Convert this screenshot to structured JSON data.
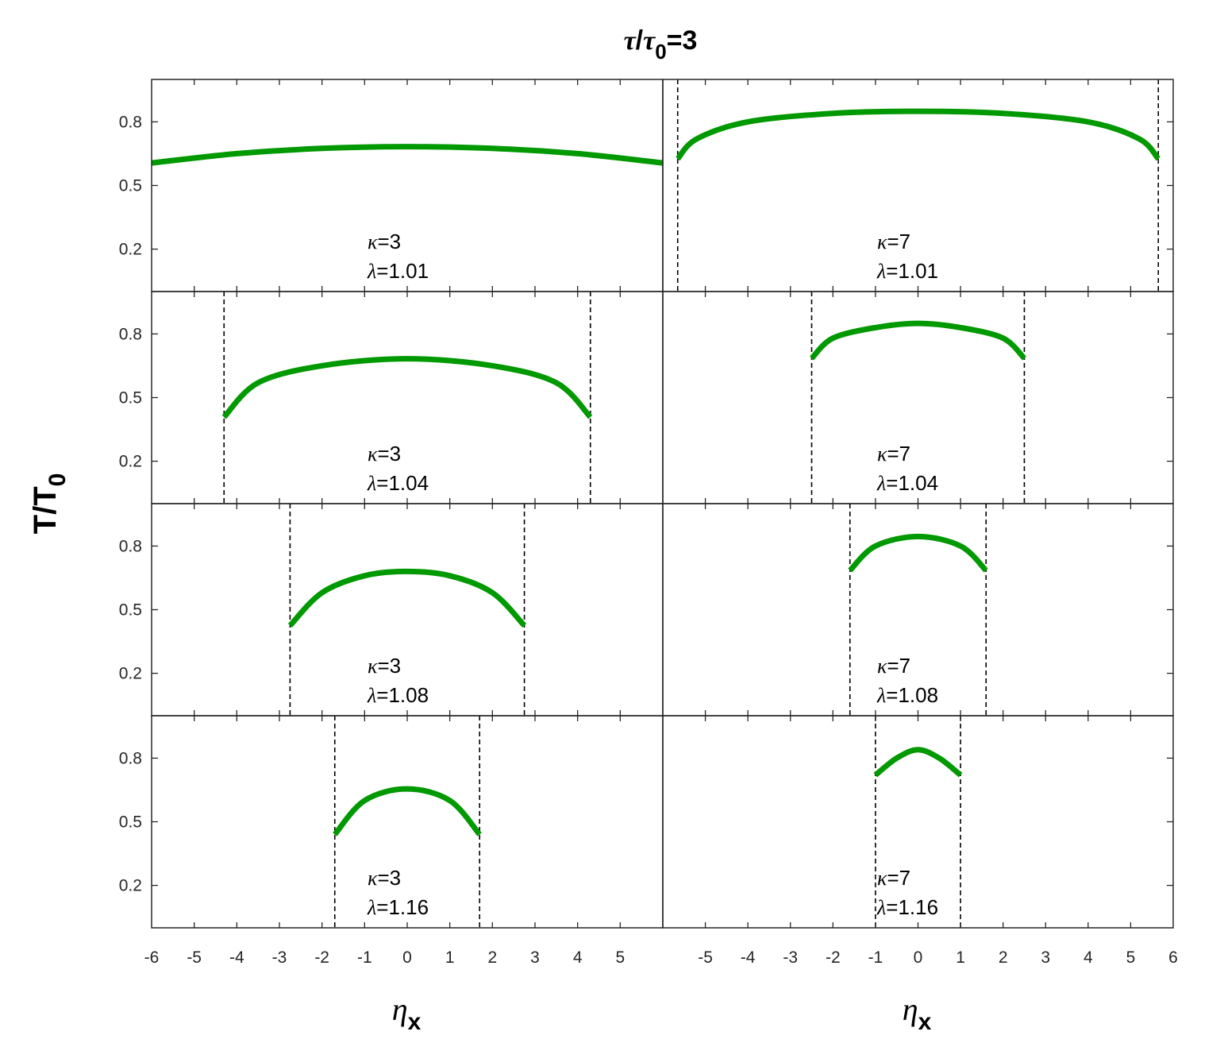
{
  "figure": {
    "title": "τ/τ0=3",
    "title_parts": {
      "tau": "τ",
      "slash": "/",
      "tau0": "τ",
      "sub": "0",
      "rest": "=3"
    },
    "ylabel": {
      "main": "T/T",
      "sub": "0"
    },
    "xlabel": {
      "main": "η",
      "sub": "x"
    }
  },
  "colors": {
    "curve": "#009900",
    "boundary": "#000000",
    "axis": "#262626"
  },
  "chart_data": {
    "type": "line",
    "layout": "grid 4 rows x 2 columns, shared axes",
    "x_range": [
      -6,
      6
    ],
    "y_range": [
      0.0,
      1.0
    ],
    "x_ticks": [
      -6,
      -5,
      -4,
      -3,
      -2,
      -1,
      0,
      1,
      2,
      3,
      4,
      5,
      6
    ],
    "y_ticks": [
      0.2,
      0.5,
      0.8
    ],
    "y_tick_labels": [
      "0.2",
      "0.5",
      "0.8"
    ],
    "left_column_x_tick_labels": [
      "-6",
      "-5",
      "-4",
      "-3",
      "-2",
      "-1",
      "0",
      "1",
      "2",
      "3",
      "4",
      "5"
    ],
    "right_column_x_tick_labels": [
      "-5",
      "-4",
      "-3",
      "-2",
      "-1",
      "0",
      "1",
      "2",
      "3",
      "4",
      "5",
      "6"
    ],
    "panels": [
      {
        "row": 0,
        "col": 0,
        "kappa": "3",
        "lambda": "1.01",
        "edge": 7.2,
        "boundaries": false,
        "points": [
          [
            -6,
            0.606
          ],
          [
            -4,
            0.65
          ],
          [
            -2,
            0.675
          ],
          [
            0,
            0.683
          ],
          [
            2,
            0.675
          ],
          [
            4,
            0.65
          ],
          [
            6,
            0.606
          ]
        ]
      },
      {
        "row": 0,
        "col": 1,
        "kappa": "7",
        "lambda": "1.01",
        "edge": 5.65,
        "boundaries": true,
        "points": [
          [
            -5.65,
            0.626
          ],
          [
            -5.2,
            0.72
          ],
          [
            -4,
            0.8
          ],
          [
            -2,
            0.84
          ],
          [
            0,
            0.85
          ],
          [
            2,
            0.84
          ],
          [
            4,
            0.8
          ],
          [
            5.2,
            0.72
          ],
          [
            5.65,
            0.626
          ]
        ]
      },
      {
        "row": 1,
        "col": 0,
        "kappa": "3",
        "lambda": "1.04",
        "edge": 4.3,
        "boundaries": true,
        "points": [
          [
            -4.3,
            0.408
          ],
          [
            -3.5,
            0.57
          ],
          [
            -2,
            0.65
          ],
          [
            0,
            0.683
          ],
          [
            2,
            0.65
          ],
          [
            3.5,
            0.57
          ],
          [
            4.3,
            0.408
          ]
        ]
      },
      {
        "row": 1,
        "col": 1,
        "kappa": "7",
        "lambda": "1.04",
        "edge": 2.5,
        "boundaries": true,
        "points": [
          [
            -2.5,
            0.685
          ],
          [
            -2,
            0.78
          ],
          [
            -1,
            0.83
          ],
          [
            0,
            0.85
          ],
          [
            1,
            0.83
          ],
          [
            2,
            0.78
          ],
          [
            2.5,
            0.685
          ]
        ]
      },
      {
        "row": 2,
        "col": 0,
        "kappa": "3",
        "lambda": "1.08",
        "edge": 2.75,
        "boundaries": true,
        "points": [
          [
            -2.75,
            0.425
          ],
          [
            -2,
            0.58
          ],
          [
            -1,
            0.66
          ],
          [
            0,
            0.68
          ],
          [
            1,
            0.66
          ],
          [
            2,
            0.58
          ],
          [
            2.75,
            0.425
          ]
        ]
      },
      {
        "row": 2,
        "col": 1,
        "kappa": "7",
        "lambda": "1.08",
        "edge": 1.6,
        "boundaries": true,
        "points": [
          [
            -1.6,
            0.685
          ],
          [
            -1,
            0.8
          ],
          [
            0,
            0.845
          ],
          [
            1,
            0.8
          ],
          [
            1.6,
            0.685
          ]
        ]
      },
      {
        "row": 3,
        "col": 0,
        "kappa": "3",
        "lambda": "1.16",
        "edge": 1.7,
        "boundaries": true,
        "points": [
          [
            -1.7,
            0.44
          ],
          [
            -1,
            0.6
          ],
          [
            0,
            0.655
          ],
          [
            1,
            0.6
          ],
          [
            1.7,
            0.44
          ]
        ]
      },
      {
        "row": 3,
        "col": 1,
        "kappa": "7",
        "lambda": "1.16",
        "edge": 1.0,
        "boundaries": true,
        "points": [
          [
            -1.0,
            0.72
          ],
          [
            -0.5,
            0.8
          ],
          [
            0,
            0.84
          ],
          [
            0.5,
            0.8
          ],
          [
            1.0,
            0.72
          ]
        ]
      }
    ],
    "annotation_symbols": {
      "kappa": "κ",
      "lambda": "λ"
    },
    "grid": false,
    "legend": "none"
  }
}
